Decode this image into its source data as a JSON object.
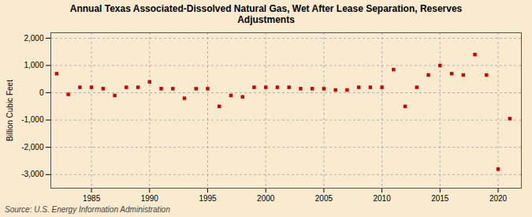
{
  "chart_data": {
    "type": "scatter",
    "title": "Annual Texas Associated-Dissolved Natural Gas, Wet After Lease Separation, Reserves\nAdjustments",
    "ylabel": "Billion Cubic Feet",
    "annotations": [
      "Source: U.S. Energy Information Administration"
    ],
    "x": [
      1982,
      1983,
      1984,
      1985,
      1986,
      1987,
      1988,
      1989,
      1990,
      1991,
      1992,
      1993,
      1994,
      1995,
      1996,
      1997,
      1998,
      1999,
      2000,
      2001,
      2002,
      2003,
      2004,
      2005,
      2006,
      2007,
      2008,
      2009,
      2010,
      2011,
      2012,
      2013,
      2014,
      2015,
      2016,
      2017,
      2018,
      2019,
      2020,
      2021
    ],
    "values": [
      700,
      -60,
      200,
      200,
      150,
      -100,
      200,
      200,
      400,
      150,
      150,
      -200,
      150,
      150,
      -500,
      -100,
      -150,
      200,
      200,
      200,
      200,
      150,
      150,
      150,
      100,
      100,
      200,
      200,
      200,
      850,
      -500,
      200,
      650,
      1000,
      700,
      650,
      1400,
      650,
      -2800,
      -950
    ],
    "color": "#cc0000",
    "marker": "square",
    "xlim": [
      1981.5,
      2022
    ],
    "xticks": [
      1985,
      1990,
      1995,
      2000,
      2005,
      2010,
      2015,
      2020
    ],
    "ylim": [
      -3500,
      2200
    ],
    "yticks": [
      {
        "value": -3000,
        "label": "-3,000"
      },
      {
        "value": -2000,
        "label": "-2,000"
      },
      {
        "value": -1000,
        "label": "-1,000"
      },
      0,
      {
        "value": 1000,
        "label": "1,000"
      },
      {
        "value": 2000,
        "label": "2,000"
      }
    ],
    "grid": true
  }
}
